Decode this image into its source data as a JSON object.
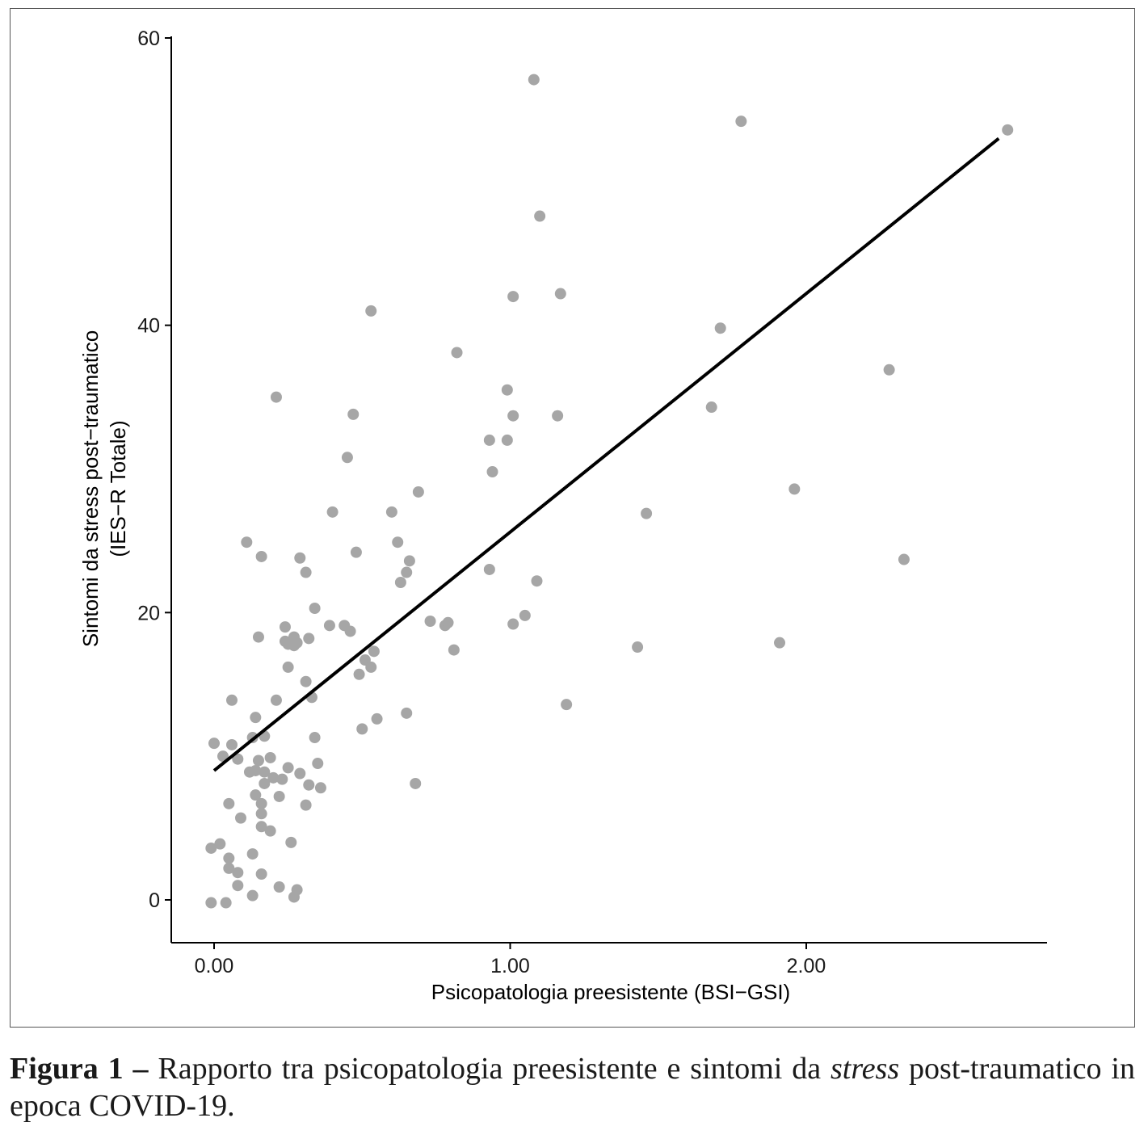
{
  "chart_data": {
    "type": "scatter",
    "xlabel": "Psicopatologia preesistente (BSI−GSI)",
    "ylabel_line1": "Sintomi da stress post−traumatico",
    "ylabel_line2": "(IES−R Totale)",
    "x_ticks": [
      {
        "value": 0,
        "label": "0.00"
      },
      {
        "value": 1,
        "label": "1.00"
      },
      {
        "value": 2,
        "label": "2.00"
      }
    ],
    "y_ticks": [
      {
        "value": 0,
        "label": "0"
      },
      {
        "value": 20,
        "label": "20"
      },
      {
        "value": 40,
        "label": "40"
      },
      {
        "value": 60,
        "label": "60"
      }
    ],
    "xlim": [
      -0.14,
      2.8
    ],
    "ylim": [
      -3,
      60
    ],
    "point_color": "#a6a6a6",
    "line_color": "#000000",
    "regression_line": [
      [
        0.0,
        9.0
      ],
      [
        2.65,
        53.0
      ]
    ],
    "points": [
      [
        -0.01,
        3.6
      ],
      [
        -0.01,
        -0.2
      ],
      [
        0.0,
        10.9
      ],
      [
        0.02,
        3.9
      ],
      [
        0.03,
        10.0
      ],
      [
        0.04,
        -0.2
      ],
      [
        0.05,
        6.7
      ],
      [
        0.05,
        2.9
      ],
      [
        0.05,
        2.2
      ],
      [
        0.06,
        10.8
      ],
      [
        0.06,
        13.9
      ],
      [
        0.08,
        9.8
      ],
      [
        0.08,
        1.9
      ],
      [
        0.08,
        1.0
      ],
      [
        0.09,
        5.7
      ],
      [
        0.11,
        24.9
      ],
      [
        0.12,
        8.9
      ],
      [
        0.13,
        11.3
      ],
      [
        0.13,
        0.3
      ],
      [
        0.13,
        3.2
      ],
      [
        0.14,
        12.7
      ],
      [
        0.14,
        9.0
      ],
      [
        0.14,
        7.3
      ],
      [
        0.15,
        9.7
      ],
      [
        0.15,
        18.3
      ],
      [
        0.16,
        23.9
      ],
      [
        0.16,
        6.7
      ],
      [
        0.16,
        5.1
      ],
      [
        0.16,
        6.0
      ],
      [
        0.16,
        1.8
      ],
      [
        0.17,
        11.4
      ],
      [
        0.17,
        8.9
      ],
      [
        0.17,
        8.1
      ],
      [
        0.19,
        9.9
      ],
      [
        0.19,
        4.8
      ],
      [
        0.2,
        8.5
      ],
      [
        0.21,
        35.0
      ],
      [
        0.21,
        13.9
      ],
      [
        0.22,
        7.2
      ],
      [
        0.22,
        0.9
      ],
      [
        0.23,
        8.4
      ],
      [
        0.24,
        18.0
      ],
      [
        0.24,
        19.0
      ],
      [
        0.25,
        17.8
      ],
      [
        0.25,
        16.2
      ],
      [
        0.25,
        9.2
      ],
      [
        0.26,
        4.0
      ],
      [
        0.27,
        17.7
      ],
      [
        0.27,
        18.3
      ],
      [
        0.27,
        0.2
      ],
      [
        0.28,
        17.9
      ],
      [
        0.28,
        0.7
      ],
      [
        0.29,
        8.8
      ],
      [
        0.29,
        23.8
      ],
      [
        0.31,
        22.8
      ],
      [
        0.31,
        15.2
      ],
      [
        0.31,
        6.6
      ],
      [
        0.32,
        18.2
      ],
      [
        0.32,
        8.0
      ],
      [
        0.33,
        14.1
      ],
      [
        0.34,
        20.3
      ],
      [
        0.34,
        11.3
      ],
      [
        0.35,
        9.5
      ],
      [
        0.36,
        7.8
      ],
      [
        0.39,
        19.1
      ],
      [
        0.4,
        27.0
      ],
      [
        0.44,
        19.1
      ],
      [
        0.45,
        30.8
      ],
      [
        0.46,
        18.7
      ],
      [
        0.47,
        33.8
      ],
      [
        0.48,
        24.2
      ],
      [
        0.49,
        15.7
      ],
      [
        0.5,
        11.9
      ],
      [
        0.51,
        16.7
      ],
      [
        0.53,
        41.0
      ],
      [
        0.53,
        16.2
      ],
      [
        0.54,
        17.3
      ],
      [
        0.55,
        12.6
      ],
      [
        0.6,
        27.0
      ],
      [
        0.62,
        24.9
      ],
      [
        0.63,
        22.1
      ],
      [
        0.65,
        22.8
      ],
      [
        0.65,
        13.0
      ],
      [
        0.66,
        23.6
      ],
      [
        0.68,
        8.1
      ],
      [
        0.69,
        28.4
      ],
      [
        0.73,
        19.4
      ],
      [
        0.78,
        19.1
      ],
      [
        0.79,
        19.3
      ],
      [
        0.81,
        17.4
      ],
      [
        0.82,
        38.1
      ],
      [
        0.93,
        32.0
      ],
      [
        0.93,
        23.0
      ],
      [
        0.94,
        29.8
      ],
      [
        0.99,
        32.0
      ],
      [
        0.99,
        35.5
      ],
      [
        1.01,
        33.7
      ],
      [
        1.01,
        42.0
      ],
      [
        1.01,
        19.2
      ],
      [
        1.05,
        19.8
      ],
      [
        1.08,
        57.1
      ],
      [
        1.09,
        22.2
      ],
      [
        1.1,
        47.6
      ],
      [
        1.16,
        33.7
      ],
      [
        1.17,
        42.2
      ],
      [
        1.19,
        13.6
      ],
      [
        1.43,
        17.6
      ],
      [
        1.46,
        26.9
      ],
      [
        1.68,
        34.3
      ],
      [
        1.71,
        39.8
      ],
      [
        1.78,
        54.2
      ],
      [
        1.91,
        17.9
      ],
      [
        1.96,
        28.6
      ],
      [
        2.28,
        36.9
      ],
      [
        2.33,
        23.7
      ],
      [
        2.68,
        53.6
      ]
    ]
  },
  "caption": {
    "label": "Figura 1 –",
    "text_before": " Rapporto tra psicopatologia preesistente e sintomi da ",
    "term": "stress",
    "text_after": " post-traumatico in epoca COVID-19."
  }
}
